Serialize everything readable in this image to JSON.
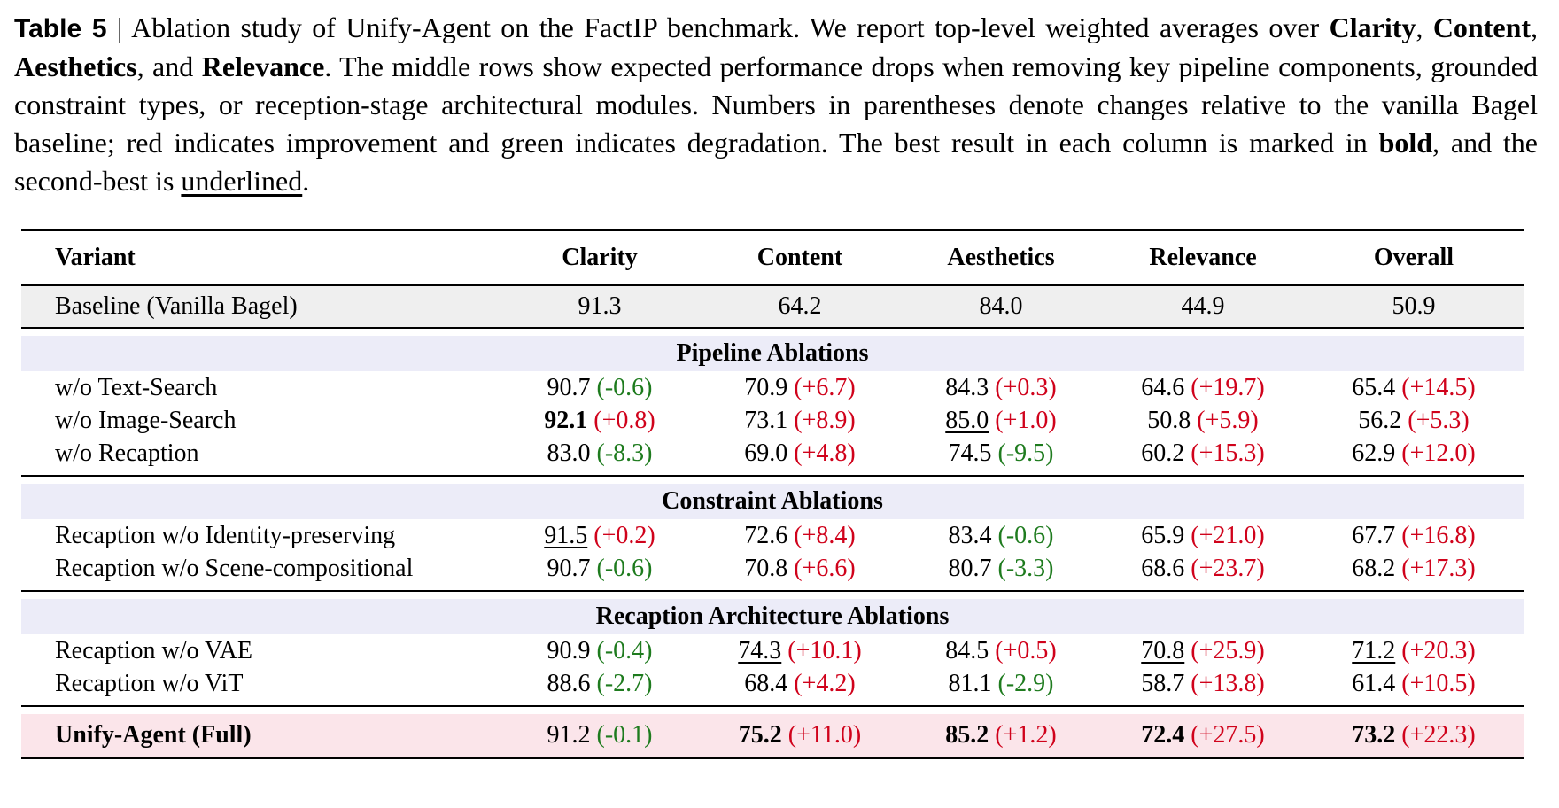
{
  "caption": {
    "label": "Table 5",
    "sep": " | ",
    "p1": "Ablation study of Unify-Agent on the FactIP benchmark. We report top-level weighted averages over ",
    "clarity": "Clarity",
    "comma1": ", ",
    "content": "Content",
    "comma2": ", ",
    "aesthetics": "Aesthetics",
    "and": ", and ",
    "relevance": "Relevance",
    "p2": ". The middle rows show expected performance drops when removing key pipeline components, grounded constraint types, or reception-stage architectural modules. Numbers in parentheses denote changes relative to the vanilla Bagel baseline; red indicates improvement and green indicates degradation. The best result in each column is marked in ",
    "bold": "bold",
    "p3": ", and the second-best is ",
    "underlined": "underlined",
    "p4": "."
  },
  "columns": [
    "Variant",
    "Clarity",
    "Content",
    "Aesthetics",
    "Relevance",
    "Overall"
  ],
  "baseline": {
    "name": "Baseline (Vanilla Bagel)",
    "values": [
      "91.3",
      "64.2",
      "84.0",
      "44.9",
      "50.9"
    ]
  },
  "sections": [
    {
      "title": "Pipeline Ablations",
      "rows": [
        {
          "name": "w/o Text-Search",
          "cells": [
            {
              "v": "90.7",
              "d": "(-0.6)",
              "s": "neg",
              "m": ""
            },
            {
              "v": "70.9",
              "d": "(+6.7)",
              "s": "pos",
              "m": ""
            },
            {
              "v": "84.3",
              "d": "(+0.3)",
              "s": "pos",
              "m": ""
            },
            {
              "v": "64.6",
              "d": "(+19.7)",
              "s": "pos",
              "m": ""
            },
            {
              "v": "65.4",
              "d": "(+14.5)",
              "s": "pos",
              "m": ""
            }
          ]
        },
        {
          "name": "w/o Image-Search",
          "cells": [
            {
              "v": "92.1",
              "d": "(+0.8)",
              "s": "pos",
              "m": "best"
            },
            {
              "v": "73.1",
              "d": "(+8.9)",
              "s": "pos",
              "m": ""
            },
            {
              "v": "85.0",
              "d": "(+1.0)",
              "s": "pos",
              "m": "second"
            },
            {
              "v": "50.8",
              "d": "(+5.9)",
              "s": "pos",
              "m": ""
            },
            {
              "v": "56.2",
              "d": "(+5.3)",
              "s": "pos",
              "m": ""
            }
          ]
        },
        {
          "name": "w/o Recaption",
          "cells": [
            {
              "v": "83.0",
              "d": "(-8.3)",
              "s": "neg",
              "m": ""
            },
            {
              "v": "69.0",
              "d": "(+4.8)",
              "s": "pos",
              "m": ""
            },
            {
              "v": "74.5",
              "d": "(-9.5)",
              "s": "neg",
              "m": ""
            },
            {
              "v": "60.2",
              "d": "(+15.3)",
              "s": "pos",
              "m": ""
            },
            {
              "v": "62.9",
              "d": "(+12.0)",
              "s": "pos",
              "m": ""
            }
          ]
        }
      ]
    },
    {
      "title": "Constraint Ablations",
      "rows": [
        {
          "name": "Recaption w/o Identity-preserving",
          "cells": [
            {
              "v": "91.5",
              "d": "(+0.2)",
              "s": "pos",
              "m": "second"
            },
            {
              "v": "72.6",
              "d": "(+8.4)",
              "s": "pos",
              "m": ""
            },
            {
              "v": "83.4",
              "d": "(-0.6)",
              "s": "neg",
              "m": ""
            },
            {
              "v": "65.9",
              "d": "(+21.0)",
              "s": "pos",
              "m": ""
            },
            {
              "v": "67.7",
              "d": "(+16.8)",
              "s": "pos",
              "m": ""
            }
          ]
        },
        {
          "name": "Recaption w/o Scene-compositional",
          "cells": [
            {
              "v": "90.7",
              "d": "(-0.6)",
              "s": "neg",
              "m": ""
            },
            {
              "v": "70.8",
              "d": "(+6.6)",
              "s": "pos",
              "m": ""
            },
            {
              "v": "80.7",
              "d": "(-3.3)",
              "s": "neg",
              "m": ""
            },
            {
              "v": "68.6",
              "d": "(+23.7)",
              "s": "pos",
              "m": ""
            },
            {
              "v": "68.2",
              "d": "(+17.3)",
              "s": "pos",
              "m": ""
            }
          ]
        }
      ]
    },
    {
      "title": "Recaption Architecture Ablations",
      "rows": [
        {
          "name": "Recaption w/o VAE",
          "cells": [
            {
              "v": "90.9",
              "d": "(-0.4)",
              "s": "neg",
              "m": ""
            },
            {
              "v": "74.3",
              "d": "(+10.1)",
              "s": "pos",
              "m": "second"
            },
            {
              "v": "84.5",
              "d": "(+0.5)",
              "s": "pos",
              "m": ""
            },
            {
              "v": "70.8",
              "d": "(+25.9)",
              "s": "pos",
              "m": "second"
            },
            {
              "v": "71.2",
              "d": "(+20.3)",
              "s": "pos",
              "m": "second"
            }
          ]
        },
        {
          "name": "Recaption w/o ViT",
          "cells": [
            {
              "v": "88.6",
              "d": "(-2.7)",
              "s": "neg",
              "m": ""
            },
            {
              "v": "68.4",
              "d": "(+4.2)",
              "s": "pos",
              "m": ""
            },
            {
              "v": "81.1",
              "d": "(-2.9)",
              "s": "neg",
              "m": ""
            },
            {
              "v": "58.7",
              "d": "(+13.8)",
              "s": "pos",
              "m": ""
            },
            {
              "v": "61.4",
              "d": "(+10.5)",
              "s": "pos",
              "m": ""
            }
          ]
        }
      ]
    }
  ],
  "full": {
    "name": "Unify-Agent (Full)",
    "cells": [
      {
        "v": "91.2",
        "d": "(-0.1)",
        "s": "neg",
        "m": ""
      },
      {
        "v": "75.2",
        "d": "(+11.0)",
        "s": "pos",
        "m": "best"
      },
      {
        "v": "85.2",
        "d": "(+1.2)",
        "s": "pos",
        "m": "best"
      },
      {
        "v": "72.4",
        "d": "(+27.5)",
        "s": "pos",
        "m": "best"
      },
      {
        "v": "73.2",
        "d": "(+22.3)",
        "s": "pos",
        "m": "best"
      }
    ]
  },
  "colors": {
    "improvement": "#d0021b",
    "degradation": "#1e7b1e",
    "full_row_bg": "#fbe5ea",
    "section_bg": "#ececf8",
    "baseline_bg": "#efefef"
  }
}
